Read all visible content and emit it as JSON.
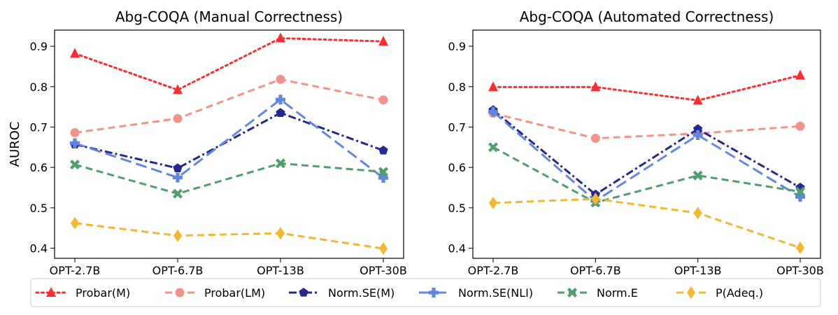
{
  "chart_data": {
    "type": "line",
    "ylabel": "AUROC",
    "categories": [
      "OPT-2.7B",
      "OPT-6.7B",
      "OPT-13B",
      "OPT-30B"
    ],
    "yticks": [
      "0.4",
      "0.5",
      "0.6",
      "0.7",
      "0.8",
      "0.9"
    ],
    "ylim": [
      0.375,
      0.94
    ],
    "legend_position": "bottom",
    "series_styles": [
      {
        "name": "Probar(M)",
        "color": "#ff2d2d",
        "dash": "dotted",
        "marker": "triangle"
      },
      {
        "name": "Probar(LM)",
        "color": "#f5938a",
        "dash": "dashed",
        "marker": "circle"
      },
      {
        "name": "Norm.SE(M)",
        "color": "#27288f",
        "dash": "dashdot",
        "marker": "pentagon"
      },
      {
        "name": "Norm.SE(NLI)",
        "color": "#6287e2",
        "dash": "longdash",
        "marker": "plus"
      },
      {
        "name": "Norm.E",
        "color": "#4f9e6b",
        "dash": "dashed",
        "marker": "x"
      },
      {
        "name": "P(Adeq.)",
        "color": "#f5b731",
        "dash": "dashed",
        "marker": "diamond"
      }
    ],
    "panels": [
      {
        "title": "Abg-COQA (Manual Correctness)",
        "series": [
          {
            "name": "Probar(M)",
            "values": [
              0.882,
              0.792,
              0.92,
              0.912
            ]
          },
          {
            "name": "Probar(LM)",
            "values": [
              0.686,
              0.721,
              0.818,
              0.767
            ]
          },
          {
            "name": "Norm.SE(M)",
            "values": [
              0.657,
              0.598,
              0.735,
              0.642
            ]
          },
          {
            "name": "Norm.SE(NLI)",
            "values": [
              0.66,
              0.575,
              0.768,
              0.574
            ]
          },
          {
            "name": "Norm.E",
            "values": [
              0.607,
              0.535,
              0.61,
              0.589
            ]
          },
          {
            "name": "P(Adeq.)",
            "values": [
              0.462,
              0.431,
              0.437,
              0.399
            ]
          }
        ]
      },
      {
        "title": "Abg-COQA (Automated Correctness)",
        "series": [
          {
            "name": "Probar(M)",
            "values": [
              0.799,
              0.799,
              0.766,
              0.828
            ]
          },
          {
            "name": "Probar(LM)",
            "values": [
              0.734,
              0.672,
              0.684,
              0.702
            ]
          },
          {
            "name": "Norm.SE(M)",
            "values": [
              0.742,
              0.533,
              0.695,
              0.55
            ]
          },
          {
            "name": "Norm.SE(NLI)",
            "values": [
              0.738,
              0.517,
              0.68,
              0.527
            ]
          },
          {
            "name": "Norm.E",
            "values": [
              0.65,
              0.513,
              0.58,
              0.54
            ]
          },
          {
            "name": "P(Adeq.)",
            "values": [
              0.512,
              0.522,
              0.487,
              0.401
            ]
          }
        ]
      }
    ]
  }
}
